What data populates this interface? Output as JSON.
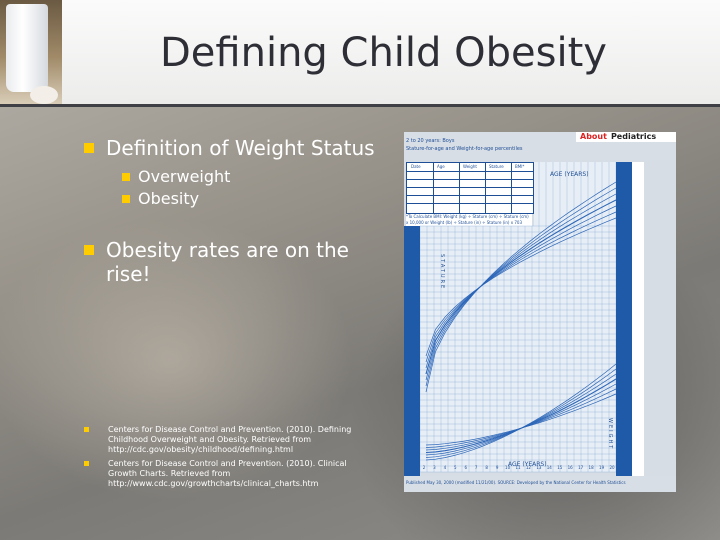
{
  "slide": {
    "title": "Defining Child Obesity"
  },
  "bullets": [
    {
      "label": "Definition of Weight Status",
      "sub": [
        "Overweight",
        "Obesity"
      ]
    },
    {
      "label": "Obesity rates are on the rise!",
      "sub": []
    }
  ],
  "references": [
    "Centers for Disease Control and Prevention. (2010). Defining Childhood Overweight and Obesity. Retrieved from http://cdc.gov/obesity/childhood/defining.html",
    "Centers for Disease Control and Prevention. (2010). Clinical Growth Charts. Retrieved from http://www.cdc.gov/growthcharts/clinical_charts.htm"
  ],
  "growth_chart": {
    "brand": "About",
    "brand_sub": "Pediatrics",
    "top_text_1": "2 to 20 years: Boys",
    "top_text_2": "Stature-for-age and Weight-for-age percentiles",
    "age_label": "AGE (YEARS)",
    "stature_label": "STATURE",
    "weight_label": "WEIGHT",
    "table_headers": [
      "Date",
      "Age",
      "Weight",
      "Stature",
      "BMI*"
    ],
    "calc_text": "*To Calculate BMI: Weight (kg) ÷ Stature (cm) ÷ Stature (cm) x 10,000 or Weight (lb) ÷ Stature (in) ÷ Stature (in) x 703",
    "footer_text": "Published May 30, 2000 (modified 11/21/00). SOURCE: Developed by the National Center for Health Statistics",
    "x_ticks": [
      "2",
      "3",
      "4",
      "5",
      "6",
      "7",
      "8",
      "9",
      "10",
      "11",
      "12",
      "13",
      "14",
      "15",
      "16",
      "17",
      "18",
      "19",
      "20"
    ],
    "colors": {
      "grid": "#8fb0d8",
      "line": "#2c66b8",
      "bg": "#e8eef5"
    }
  }
}
